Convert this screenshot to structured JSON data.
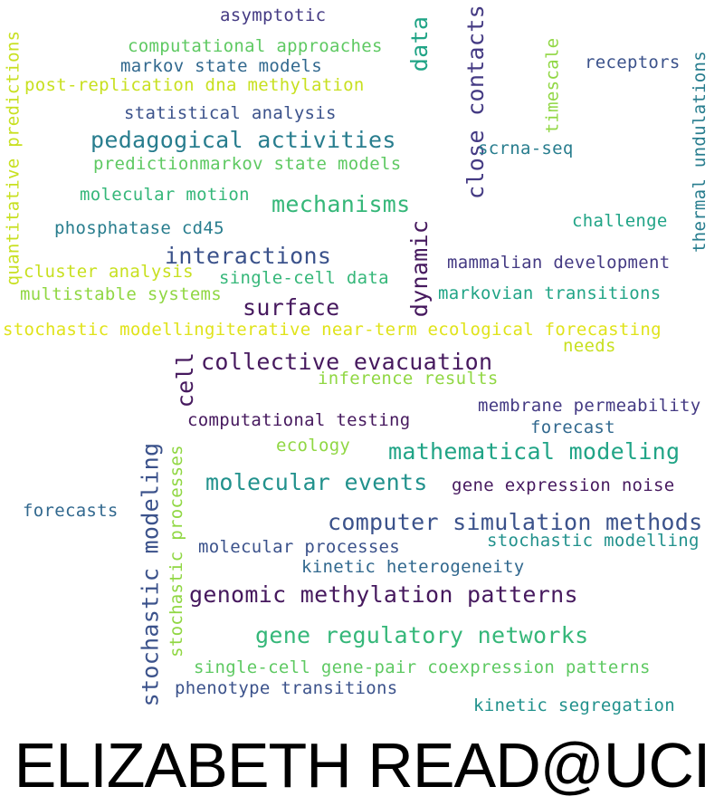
{
  "colors": {
    "dark_purple": "#46195e",
    "indigo": "#443a83",
    "slate_blue": "#3b528b",
    "steel_blue": "#31688e",
    "teal_blue": "#287d8e",
    "teal": "#21918c",
    "sea_green": "#20a486",
    "green": "#35b779",
    "light_green": "#5ec962",
    "lime": "#90d743",
    "yellow_green": "#c8e020",
    "yellow": "#e0e31a"
  },
  "words": [
    {
      "text": "asymptotic",
      "color": "#443a83"
    },
    {
      "text": "computational approaches",
      "color": "#5ec962"
    },
    {
      "text": "markov state models",
      "color": "#31688e"
    },
    {
      "text": "post-replication dna methylation",
      "color": "#c8e020"
    },
    {
      "text": "statistical analysis",
      "color": "#3b528b"
    },
    {
      "text": "pedagogical activities",
      "color": "#287d8e"
    },
    {
      "text": "predictionmarkov state models",
      "color": "#5ec962"
    },
    {
      "text": "molecular motion",
      "color": "#35b779"
    },
    {
      "text": "mechanisms",
      "color": "#35b779"
    },
    {
      "text": "phosphatase cd45",
      "color": "#287d8e"
    },
    {
      "text": "interactions",
      "color": "#3b528b"
    },
    {
      "text": "cluster analysis",
      "color": "#c8e020"
    },
    {
      "text": "single-cell data",
      "color": "#35b779"
    },
    {
      "text": "multistable systems",
      "color": "#90d743"
    },
    {
      "text": "surface",
      "color": "#46195e"
    },
    {
      "text": "data",
      "color": "#20a486"
    },
    {
      "text": "close contacts",
      "color": "#443a83"
    },
    {
      "text": "dynamic",
      "color": "#46195e"
    },
    {
      "text": "timescale",
      "color": "#90d743"
    },
    {
      "text": "receptors",
      "color": "#3b528b"
    },
    {
      "text": "scrna-seq",
      "color": "#287d8e"
    },
    {
      "text": "thermal undulations",
      "color": "#287d8e"
    },
    {
      "text": "challenge",
      "color": "#20a486"
    },
    {
      "text": "mammalian development",
      "color": "#443a83"
    },
    {
      "text": "markovian transitions",
      "color": "#20a486"
    },
    {
      "text": "quantitative predictions",
      "color": "#c8e020"
    },
    {
      "text": "stochastic modellingiterative near-term ecological forecasting",
      "color": "#e0e31a"
    },
    {
      "text": "needs",
      "color": "#c8e020"
    },
    {
      "text": "cell",
      "color": "#46195e"
    },
    {
      "text": "collective evacuation",
      "color": "#46195e"
    },
    {
      "text": "inference results",
      "color": "#90d743"
    },
    {
      "text": "membrane permeability",
      "color": "#443a83"
    },
    {
      "text": "forecast",
      "color": "#31688e"
    },
    {
      "text": "computational testing",
      "color": "#46195e"
    },
    {
      "text": "ecology",
      "color": "#90d743"
    },
    {
      "text": "mathematical modeling",
      "color": "#20a486"
    },
    {
      "text": "stochastic modeling",
      "color": "#3b528b"
    },
    {
      "text": "stochastic processes",
      "color": "#90d743"
    },
    {
      "text": "molecular events",
      "color": "#21918c"
    },
    {
      "text": "gene expression noise",
      "color": "#46195e"
    },
    {
      "text": "forecasts",
      "color": "#31688e"
    },
    {
      "text": "computer simulation methods",
      "color": "#3b528b"
    },
    {
      "text": "molecular processes",
      "color": "#3b528b"
    },
    {
      "text": "stochastic modelling",
      "color": "#21918c"
    },
    {
      "text": "kinetic heterogeneity",
      "color": "#31688e"
    },
    {
      "text": "genomic methylation patterns",
      "color": "#46195e"
    },
    {
      "text": "gene regulatory networks",
      "color": "#35b779"
    },
    {
      "text": "single-cell gene-pair coexpression patterns",
      "color": "#5ec962"
    },
    {
      "text": "phenotype transitions",
      "color": "#3b528b"
    },
    {
      "text": "kinetic segregation",
      "color": "#21918c"
    }
  ],
  "footer": {
    "text": "ELIZABETH READ@UCI"
  }
}
